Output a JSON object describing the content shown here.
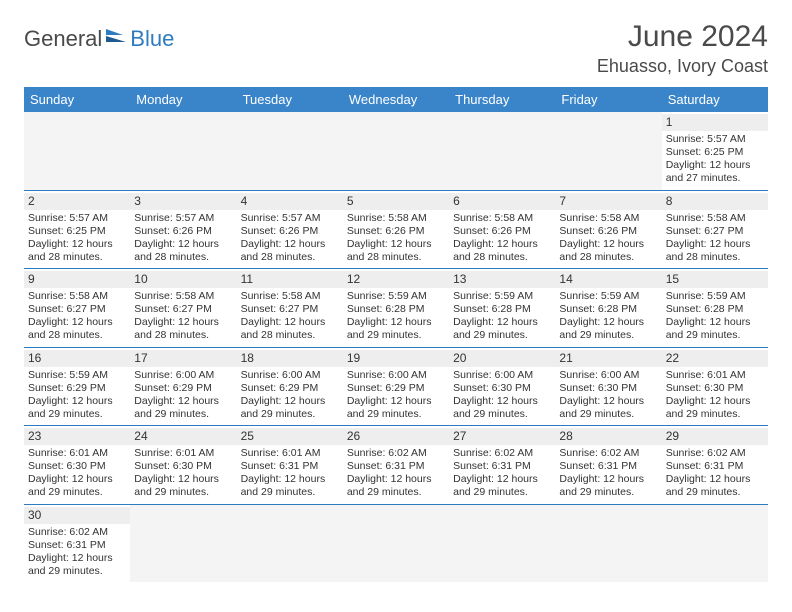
{
  "logo": {
    "part1": "General",
    "part2": "Blue"
  },
  "title": "June 2024",
  "location": "Ehuasso, Ivory Coast",
  "colors": {
    "header_bg": "#3a85c9",
    "header_text": "#ffffff",
    "rule": "#2f7bbf",
    "daynum_bg": "#eeeeee",
    "logo_gray": "#4a4a4a",
    "logo_blue": "#2f7bbf"
  },
  "weekdays": [
    "Sunday",
    "Monday",
    "Tuesday",
    "Wednesday",
    "Thursday",
    "Friday",
    "Saturday"
  ],
  "weeks": [
    [
      null,
      null,
      null,
      null,
      null,
      null,
      {
        "n": "1",
        "sr": "5:57 AM",
        "ss": "6:25 PM",
        "dl": "12 hours and 27 minutes."
      }
    ],
    [
      {
        "n": "2",
        "sr": "5:57 AM",
        "ss": "6:25 PM",
        "dl": "12 hours and 28 minutes."
      },
      {
        "n": "3",
        "sr": "5:57 AM",
        "ss": "6:26 PM",
        "dl": "12 hours and 28 minutes."
      },
      {
        "n": "4",
        "sr": "5:57 AM",
        "ss": "6:26 PM",
        "dl": "12 hours and 28 minutes."
      },
      {
        "n": "5",
        "sr": "5:58 AM",
        "ss": "6:26 PM",
        "dl": "12 hours and 28 minutes."
      },
      {
        "n": "6",
        "sr": "5:58 AM",
        "ss": "6:26 PM",
        "dl": "12 hours and 28 minutes."
      },
      {
        "n": "7",
        "sr": "5:58 AM",
        "ss": "6:26 PM",
        "dl": "12 hours and 28 minutes."
      },
      {
        "n": "8",
        "sr": "5:58 AM",
        "ss": "6:27 PM",
        "dl": "12 hours and 28 minutes."
      }
    ],
    [
      {
        "n": "9",
        "sr": "5:58 AM",
        "ss": "6:27 PM",
        "dl": "12 hours and 28 minutes."
      },
      {
        "n": "10",
        "sr": "5:58 AM",
        "ss": "6:27 PM",
        "dl": "12 hours and 28 minutes."
      },
      {
        "n": "11",
        "sr": "5:58 AM",
        "ss": "6:27 PM",
        "dl": "12 hours and 28 minutes."
      },
      {
        "n": "12",
        "sr": "5:59 AM",
        "ss": "6:28 PM",
        "dl": "12 hours and 29 minutes."
      },
      {
        "n": "13",
        "sr": "5:59 AM",
        "ss": "6:28 PM",
        "dl": "12 hours and 29 minutes."
      },
      {
        "n": "14",
        "sr": "5:59 AM",
        "ss": "6:28 PM",
        "dl": "12 hours and 29 minutes."
      },
      {
        "n": "15",
        "sr": "5:59 AM",
        "ss": "6:28 PM",
        "dl": "12 hours and 29 minutes."
      }
    ],
    [
      {
        "n": "16",
        "sr": "5:59 AM",
        "ss": "6:29 PM",
        "dl": "12 hours and 29 minutes."
      },
      {
        "n": "17",
        "sr": "6:00 AM",
        "ss": "6:29 PM",
        "dl": "12 hours and 29 minutes."
      },
      {
        "n": "18",
        "sr": "6:00 AM",
        "ss": "6:29 PM",
        "dl": "12 hours and 29 minutes."
      },
      {
        "n": "19",
        "sr": "6:00 AM",
        "ss": "6:29 PM",
        "dl": "12 hours and 29 minutes."
      },
      {
        "n": "20",
        "sr": "6:00 AM",
        "ss": "6:30 PM",
        "dl": "12 hours and 29 minutes."
      },
      {
        "n": "21",
        "sr": "6:00 AM",
        "ss": "6:30 PM",
        "dl": "12 hours and 29 minutes."
      },
      {
        "n": "22",
        "sr": "6:01 AM",
        "ss": "6:30 PM",
        "dl": "12 hours and 29 minutes."
      }
    ],
    [
      {
        "n": "23",
        "sr": "6:01 AM",
        "ss": "6:30 PM",
        "dl": "12 hours and 29 minutes."
      },
      {
        "n": "24",
        "sr": "6:01 AM",
        "ss": "6:30 PM",
        "dl": "12 hours and 29 minutes."
      },
      {
        "n": "25",
        "sr": "6:01 AM",
        "ss": "6:31 PM",
        "dl": "12 hours and 29 minutes."
      },
      {
        "n": "26",
        "sr": "6:02 AM",
        "ss": "6:31 PM",
        "dl": "12 hours and 29 minutes."
      },
      {
        "n": "27",
        "sr": "6:02 AM",
        "ss": "6:31 PM",
        "dl": "12 hours and 29 minutes."
      },
      {
        "n": "28",
        "sr": "6:02 AM",
        "ss": "6:31 PM",
        "dl": "12 hours and 29 minutes."
      },
      {
        "n": "29",
        "sr": "6:02 AM",
        "ss": "6:31 PM",
        "dl": "12 hours and 29 minutes."
      }
    ],
    [
      {
        "n": "30",
        "sr": "6:02 AM",
        "ss": "6:31 PM",
        "dl": "12 hours and 29 minutes."
      },
      null,
      null,
      null,
      null,
      null,
      null
    ]
  ],
  "labels": {
    "sunrise": "Sunrise: ",
    "sunset": "Sunset: ",
    "daylight": "Daylight: "
  }
}
